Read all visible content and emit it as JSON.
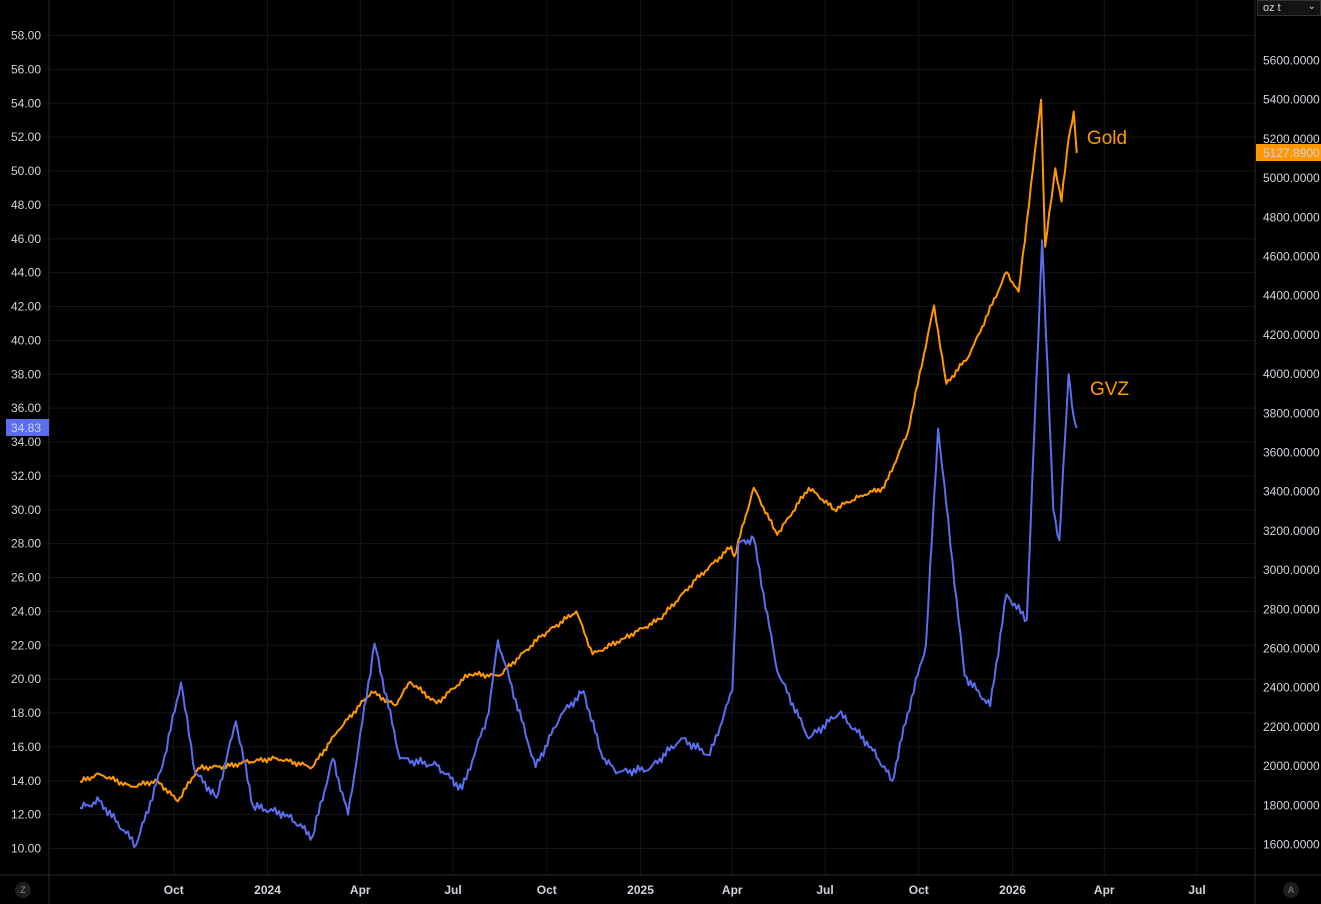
{
  "scale_controls": {
    "left_label": "Z",
    "right_label": "A",
    "unit_label": "oz t",
    "unit_chevron": "⌄"
  },
  "chart_data": {
    "type": "line",
    "x_tick_labels": [
      "Oct",
      "2024",
      "Apr",
      "Jul",
      "Oct",
      "2025",
      "Apr",
      "Jul",
      "Oct",
      "2026",
      "Apr",
      "Jul"
    ],
    "left_axis": {
      "ylim": [
        9.0,
        59.5
      ],
      "tick_labels": [
        "10.00",
        "12.00",
        "14.00",
        "16.00",
        "18.00",
        "20.00",
        "22.00",
        "24.00",
        "26.00",
        "28.00",
        "30.00",
        "32.00",
        "34.00",
        "36.00",
        "38.00",
        "40.00",
        "42.00",
        "44.00",
        "46.00",
        "48.00",
        "50.00",
        "52.00",
        "54.00",
        "56.00",
        "58.00"
      ]
    },
    "right_axis": {
      "ylim": [
        1450,
        5650
      ],
      "tick_labels": [
        "1600.0000",
        "1800.0000",
        "2000.0000",
        "2200.0000",
        "2400.0000",
        "2600.0000",
        "2800.0000",
        "3000.0000",
        "3200.0000",
        "3400.0000",
        "3600.0000",
        "3800.0000",
        "4000.0000",
        "4200.0000",
        "4400.0000",
        "4600.0000",
        "4800.0000",
        "5000.0000",
        "5200.0000",
        "5400.0000",
        "5600.0000"
      ]
    },
    "grid": true,
    "series": [
      {
        "name": "Gold",
        "axis": "right",
        "color": "#ff9800",
        "last_value_label": "5127.8900",
        "points": [
          [
            "2023-07-01",
            1920
          ],
          [
            "2023-07-20",
            1960
          ],
          [
            "2023-08-20",
            1895
          ],
          [
            "2023-09-15",
            1925
          ],
          [
            "2023-10-05",
            1820
          ],
          [
            "2023-10-25",
            1990
          ],
          [
            "2023-11-25",
            2000
          ],
          [
            "2023-12-10",
            2020
          ],
          [
            "2024-01-10",
            2040
          ],
          [
            "2024-02-14",
            1995
          ],
          [
            "2024-03-10",
            2180
          ],
          [
            "2024-04-12",
            2380
          ],
          [
            "2024-05-05",
            2310
          ],
          [
            "2024-05-20",
            2430
          ],
          [
            "2024-06-15",
            2320
          ],
          [
            "2024-07-17",
            2470
          ],
          [
            "2024-08-15",
            2460
          ],
          [
            "2024-09-25",
            2660
          ],
          [
            "2024-10-30",
            2790
          ],
          [
            "2024-11-15",
            2570
          ],
          [
            "2024-12-15",
            2650
          ],
          [
            "2025-01-20",
            2750
          ],
          [
            "2025-02-24",
            2950
          ],
          [
            "2025-03-31",
            3120
          ],
          [
            "2025-04-03",
            3070
          ],
          [
            "2025-04-22",
            3420
          ],
          [
            "2025-05-15",
            3180
          ],
          [
            "2025-06-15",
            3420
          ],
          [
            "2025-07-10",
            3310
          ],
          [
            "2025-08-05",
            3380
          ],
          [
            "2025-08-28",
            3420
          ],
          [
            "2025-09-20",
            3700
          ],
          [
            "2025-10-16",
            4350
          ],
          [
            "2025-10-28",
            3950
          ],
          [
            "2025-11-20",
            4100
          ],
          [
            "2025-12-26",
            4520
          ],
          [
            "2026-01-07",
            4420
          ],
          [
            "2026-01-29",
            5400
          ],
          [
            "2026-02-02",
            4650
          ],
          [
            "2026-02-12",
            5050
          ],
          [
            "2026-02-18",
            4880
          ],
          [
            "2026-02-25",
            5200
          ],
          [
            "2026-03-02",
            5340
          ],
          [
            "2026-03-05",
            5128
          ]
        ]
      },
      {
        "name": "GVZ",
        "axis": "left",
        "color": "#5b6ef0",
        "last_value_label": "34.83",
        "points": [
          [
            "2023-07-01",
            12.4
          ],
          [
            "2023-07-20",
            12.8
          ],
          [
            "2023-08-25",
            10.2
          ],
          [
            "2023-09-20",
            14.9
          ],
          [
            "2023-10-08",
            19.8
          ],
          [
            "2023-10-22",
            14.5
          ],
          [
            "2023-11-12",
            13.0
          ],
          [
            "2023-12-01",
            17.5
          ],
          [
            "2023-12-18",
            12.5
          ],
          [
            "2024-01-20",
            12.0
          ],
          [
            "2024-02-14",
            10.7
          ],
          [
            "2024-03-05",
            15.3
          ],
          [
            "2024-03-20",
            12.0
          ],
          [
            "2024-04-15",
            22.1
          ],
          [
            "2024-05-10",
            15.3
          ],
          [
            "2024-06-15",
            14.9
          ],
          [
            "2024-07-10",
            13.5
          ],
          [
            "2024-08-05",
            18.0
          ],
          [
            "2024-08-14",
            22.3
          ],
          [
            "2024-09-20",
            14.8
          ],
          [
            "2024-10-15",
            17.9
          ],
          [
            "2024-11-06",
            19.3
          ],
          [
            "2024-11-25",
            15.3
          ],
          [
            "2024-12-10",
            14.5
          ],
          [
            "2025-01-10",
            14.7
          ],
          [
            "2025-02-10",
            16.5
          ],
          [
            "2025-03-10",
            15.5
          ],
          [
            "2025-04-01",
            19.3
          ],
          [
            "2025-04-07",
            28.0
          ],
          [
            "2025-04-22",
            28.3
          ],
          [
            "2025-05-15",
            20.5
          ],
          [
            "2025-06-15",
            16.5
          ],
          [
            "2025-07-15",
            18.0
          ],
          [
            "2025-08-15",
            16.0
          ],
          [
            "2025-09-05",
            14.0
          ],
          [
            "2025-09-20",
            18.0
          ],
          [
            "2025-10-08",
            22.0
          ],
          [
            "2025-10-20",
            34.8
          ],
          [
            "2025-11-15",
            20.2
          ],
          [
            "2025-12-10",
            18.4
          ],
          [
            "2025-12-26",
            25.0
          ],
          [
            "2026-01-15",
            23.5
          ],
          [
            "2026-01-30",
            45.9
          ],
          [
            "2026-02-10",
            30.0
          ],
          [
            "2026-02-16",
            28.2
          ],
          [
            "2026-02-25",
            38.0
          ],
          [
            "2026-03-02",
            35.5
          ],
          [
            "2026-03-05",
            34.83
          ]
        ]
      }
    ],
    "annotations": [
      {
        "text": "Gold",
        "color": "#ff9800",
        "x": "2026-03-15",
        "y_right": 5205
      },
      {
        "text": "GVZ",
        "color": "#ff9800",
        "x": "2026-03-18",
        "y_right": 3925
      }
    ]
  }
}
